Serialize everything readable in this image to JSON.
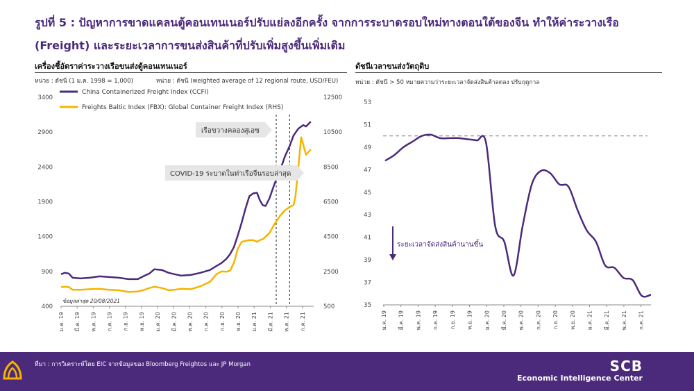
{
  "title": "รูปที่ 5 : ปัญหาการขาดแคลนตู้คอนเทนเนอร์ปรับแย่ลงอีกครั้ง จากการระบาดรอบใหม่ทางตอนใต้ของจีน ทำให้ค่าระวางเรือ (Freight) และระยะเวลาการขนส่งสินค้าที่ปรับเพิ่มสูงขึ้นเพิ่มเติม",
  "footer": {
    "source": "ที่มา : การวิเคราะห์โดย EIC จากข้อมูลของ Bloomberg Freightos และ JP Morgan",
    "brand": "SCB",
    "brand_sub": "Economic Intelligence Center",
    "accent": "#f5b400",
    "bg": "#4b2a7b"
  },
  "chart_data": [
    {
      "type": "line",
      "title": "เครื่องชี้อัตราค่าระวางเรือขนส่งตู้คอนเทนเนอร์",
      "unit_left": "หน่วย : ดัชนี (1 ม.ค. 1998 = 1,000)",
      "unit_right": "หน่วย : ดัชนี (weighted average of 12 regional route, USD/FEU)",
      "ylim_left": [
        400,
        3400
      ],
      "yticks_left": [
        400,
        900,
        1400,
        1900,
        2400,
        2900,
        3400
      ],
      "ylim_right": [
        500,
        12500
      ],
      "yticks_right": [
        500,
        2500,
        4500,
        6500,
        8500,
        10500,
        12500
      ],
      "xticks": [
        "ม.ค. 19",
        "มี.ค. 19",
        "พ.ค. 19",
        "ก.ค. 19",
        "ก.ย. 19",
        "พ.ย. 19",
        "ม.ค. 20",
        "มี.ค. 20",
        "พ.ค. 20",
        "ก.ค. 20",
        "ก.ย. 20",
        "พ.ย. 20",
        "ม.ค. 21",
        "มี.ค. 21",
        "พ.ค. 21",
        "ก.ค. 21"
      ],
      "x_start": 2019.0,
      "x_end": 2021.63,
      "series": [
        {
          "name": "China Containerized Freight Index (CCFI)",
          "axis": "left",
          "color": "#4b2a7b",
          "points": [
            [
              2019.0,
              860
            ],
            [
              2019.04,
              880
            ],
            [
              2019.08,
              870
            ],
            [
              2019.12,
              810
            ],
            [
              2019.2,
              800
            ],
            [
              2019.3,
              810
            ],
            [
              2019.4,
              830
            ],
            [
              2019.5,
              820
            ],
            [
              2019.6,
              810
            ],
            [
              2019.7,
              790
            ],
            [
              2019.8,
              790
            ],
            [
              2019.87,
              840
            ],
            [
              2019.92,
              870
            ],
            [
              2019.97,
              930
            ],
            [
              2020.05,
              920
            ],
            [
              2020.12,
              880
            ],
            [
              2020.18,
              860
            ],
            [
              2020.25,
              840
            ],
            [
              2020.35,
              850
            ],
            [
              2020.45,
              880
            ],
            [
              2020.55,
              920
            ],
            [
              2020.62,
              980
            ],
            [
              2020.67,
              1020
            ],
            [
              2020.72,
              1080
            ],
            [
              2020.76,
              1150
            ],
            [
              2020.8,
              1250
            ],
            [
              2020.84,
              1420
            ],
            [
              2020.88,
              1600
            ],
            [
              2020.92,
              1800
            ],
            [
              2020.96,
              1980
            ],
            [
              2021.0,
              2020
            ],
            [
              2021.04,
              2030
            ],
            [
              2021.07,
              1920
            ],
            [
              2021.1,
              1850
            ],
            [
              2021.13,
              1840
            ],
            [
              2021.17,
              1950
            ],
            [
              2021.22,
              2150
            ],
            [
              2021.28,
              2350
            ],
            [
              2021.33,
              2550
            ],
            [
              2021.38,
              2700
            ],
            [
              2021.42,
              2850
            ],
            [
              2021.47,
              2950
            ],
            [
              2021.52,
              3000
            ],
            [
              2021.55,
              2980
            ],
            [
              2021.6,
              3050
            ]
          ]
        },
        {
          "name": "Freights Baltic Index (FBX): Global Container Freight Index (RHS)",
          "axis": "right",
          "color": "#f5b400",
          "points": [
            [
              2019.0,
              1600
            ],
            [
              2019.04,
              1620
            ],
            [
              2019.08,
              1600
            ],
            [
              2019.12,
              1450
            ],
            [
              2019.2,
              1450
            ],
            [
              2019.3,
              1480
            ],
            [
              2019.4,
              1500
            ],
            [
              2019.5,
              1450
            ],
            [
              2019.6,
              1420
            ],
            [
              2019.7,
              1320
            ],
            [
              2019.8,
              1350
            ],
            [
              2019.87,
              1450
            ],
            [
              2019.92,
              1550
            ],
            [
              2019.97,
              1620
            ],
            [
              2020.05,
              1550
            ],
            [
              2020.12,
              1420
            ],
            [
              2020.18,
              1450
            ],
            [
              2020.25,
              1500
            ],
            [
              2020.35,
              1480
            ],
            [
              2020.45,
              1650
            ],
            [
              2020.55,
              1900
            ],
            [
              2020.62,
              2350
            ],
            [
              2020.67,
              2500
            ],
            [
              2020.72,
              2480
            ],
            [
              2020.76,
              2550
            ],
            [
              2020.8,
              3000
            ],
            [
              2020.84,
              3800
            ],
            [
              2020.88,
              4200
            ],
            [
              2020.92,
              4250
            ],
            [
              2020.96,
              4300
            ],
            [
              2021.0,
              4300
            ],
            [
              2021.04,
              4200
            ],
            [
              2021.07,
              4300
            ],
            [
              2021.1,
              4350
            ],
            [
              2021.13,
              4500
            ],
            [
              2021.17,
              4700
            ],
            [
              2021.22,
              5200
            ],
            [
              2021.28,
              5700
            ],
            [
              2021.33,
              6000
            ],
            [
              2021.38,
              6200
            ],
            [
              2021.42,
              6300
            ],
            [
              2021.44,
              6800
            ],
            [
              2021.47,
              8500
            ],
            [
              2021.5,
              10200
            ],
            [
              2021.52,
              9800
            ],
            [
              2021.55,
              9200
            ],
            [
              2021.6,
              9500
            ]
          ]
        }
      ],
      "annotations": [
        {
          "text": "เรือขวางคลองสุเอซ",
          "x": 2021.24
        },
        {
          "text": "COVID-19 ระบาดในท่าเรือจีนรอบล่าสุด",
          "x": 2021.38
        }
      ],
      "note": "ข้อมูลล่าสุด 20/08/2021"
    },
    {
      "type": "line",
      "title": "ดัชนีเวลาขนส่งวัตถุดิบ",
      "unit": "หน่วย : ดัชนี > 50 หมายความว่าระยะเวลาจัดส่งสินค้าลดลง ปรับฤดูกาล",
      "ylim": [
        35,
        53
      ],
      "yticks": [
        35,
        37,
        39,
        41,
        43,
        45,
        47,
        49,
        51,
        53
      ],
      "reference_line": 50,
      "xticks": [
        "ม.ค. 19",
        "มี.ค. 19",
        "พ.ค. 19",
        "ก.ค. 19",
        "ก.ย. 19",
        "พ.ย. 19",
        "ม.ค. 20",
        "มี.ค. 20",
        "พ.ค. 20",
        "ก.ค. 20",
        "ก.ย. 20",
        "พ.ย. 20",
        "ม.ค. 21",
        "มี.ค. 21",
        "พ.ค. 21",
        "ก.ค. 21"
      ],
      "series": [
        {
          "name": "",
          "color": "#4b2a7b",
          "values": [
            47.8,
            48.3,
            49.0,
            49.5,
            50.0,
            50.1,
            49.8,
            49.8,
            49.8,
            49.7,
            49.6,
            49.4,
            42.0,
            40.6,
            37.6,
            42.0,
            45.7,
            46.9,
            46.7,
            45.7,
            45.5,
            43.4,
            41.6,
            40.6,
            38.5,
            38.3,
            37.4,
            37.2,
            35.8,
            35.9
          ]
        }
      ],
      "annotation": "ระยะเวลาจัดส่งสินค้านานขึ้น"
    }
  ]
}
